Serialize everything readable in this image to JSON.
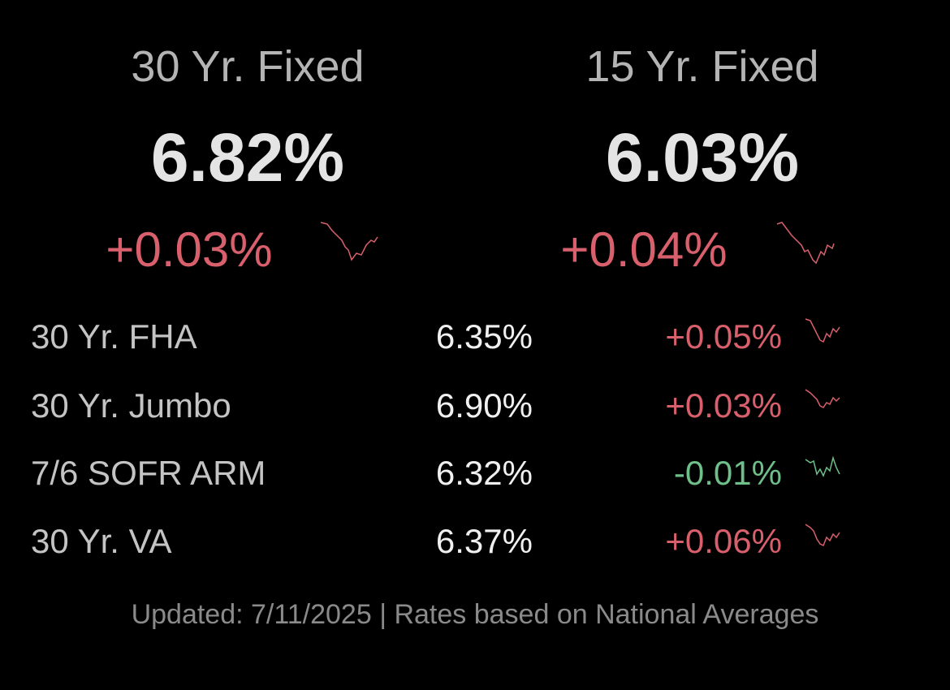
{
  "featured": [
    {
      "label": "30 Yr. Fixed",
      "rate": "6.82%",
      "change": "+0.03%"
    },
    {
      "label": "15 Yr. Fixed",
      "rate": "6.03%",
      "change": "+0.04%"
    }
  ],
  "rows": [
    {
      "label": "30 Yr. FHA",
      "rate": "6.35%",
      "change": "+0.05%"
    },
    {
      "label": "30 Yr. Jumbo",
      "rate": "6.90%",
      "change": "+0.03%"
    },
    {
      "label": "7/6 SOFR ARM",
      "rate": "6.32%",
      "change": "-0.01%"
    },
    {
      "label": "30 Yr. VA",
      "rate": "6.37%",
      "change": "+0.06%"
    }
  ],
  "footer": "Updated: 7/11/2025 | Rates based on National Averages"
}
